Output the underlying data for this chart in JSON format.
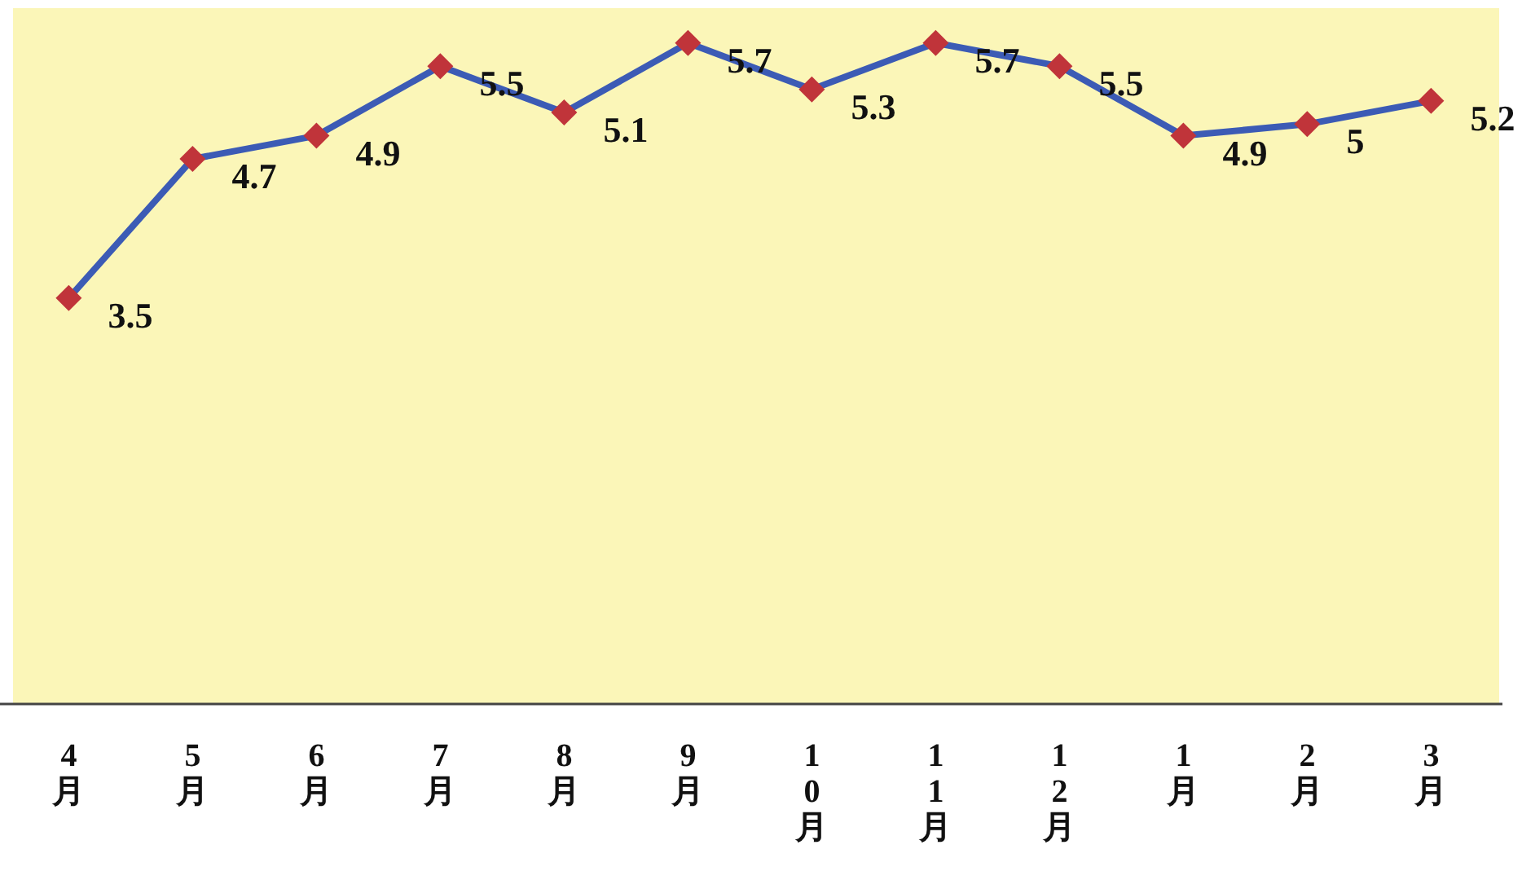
{
  "chart_data": {
    "type": "line",
    "categories": [
      "4月",
      "5月",
      "6月",
      "7月",
      "8月",
      "9月",
      "10月",
      "11月",
      "12月",
      "1月",
      "2月",
      "3月"
    ],
    "series": [
      {
        "color": "#3c5bb5",
        "values": [
          3.5,
          4.7,
          4.9,
          5.5,
          5.1,
          5.7,
          5.3,
          5.7,
          5.5,
          4.9,
          5,
          5.2
        ]
      }
    ],
    "ylim": [
      0,
      6
    ],
    "marker": "diamond",
    "line_style": "solid",
    "data_labels": true,
    "tick_labels": "x"
  }
}
